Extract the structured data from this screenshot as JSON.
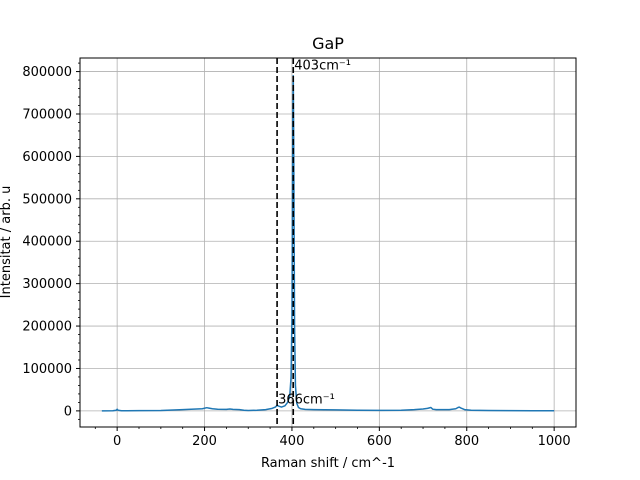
{
  "chart_data": {
    "type": "line",
    "title": "GaP",
    "xlabel": "Raman shift / cm^-1",
    "ylabel": "Intensitat / arb. u",
    "xlim": [
      -85,
      1050
    ],
    "ylim": [
      -38000,
      832000
    ],
    "xticks": [
      0,
      200,
      400,
      600,
      800,
      1000
    ],
    "xtick_labels": [
      "0",
      "200",
      "400",
      "600",
      "800",
      "1000"
    ],
    "yticks": [
      0,
      100000,
      200000,
      300000,
      400000,
      500000,
      600000,
      700000,
      800000
    ],
    "ytick_labels": [
      "0",
      "100000",
      "200000",
      "300000",
      "400000",
      "500000",
      "600000",
      "700000",
      "800000"
    ],
    "grid": true,
    "line_color": "#1f77b4",
    "series": [
      {
        "x": [
          -35,
          -10,
          -2,
          0,
          2,
          10,
          50,
          100,
          150,
          195,
          205,
          210,
          218,
          230,
          250,
          258,
          265,
          280,
          290,
          300,
          320,
          340,
          355,
          362,
          366,
          370,
          376,
          384,
          390,
          395,
          398,
          400,
          401,
          402,
          403,
          404,
          405,
          406,
          408,
          411,
          415,
          420,
          430,
          450,
          500,
          550,
          600,
          650,
          680,
          700,
          710,
          718,
          722,
          730,
          760,
          775,
          780,
          783,
          786,
          795,
          810,
          850,
          900,
          950,
          1000
        ],
        "y": [
          0,
          300,
          1500,
          4000,
          1500,
          300,
          500,
          1000,
          3000,
          5000,
          7500,
          6500,
          5000,
          4000,
          3500,
          4500,
          3500,
          3000,
          1500,
          1000,
          1500,
          3000,
          6000,
          9000,
          13000,
          11000,
          9000,
          12000,
          20000,
          35000,
          80000,
          220000,
          450000,
          700000,
          790000,
          640000,
          420000,
          200000,
          60000,
          18000,
          8000,
          5000,
          3500,
          3000,
          2500,
          1500,
          1200,
          1500,
          3000,
          4500,
          6000,
          8000,
          4000,
          3000,
          3000,
          5000,
          8000,
          9000,
          7000,
          3000,
          1500,
          800,
          500,
          300,
          200
        ]
      }
    ],
    "vlines": [
      {
        "x": 366,
        "style": "dashed",
        "color": "#000000"
      },
      {
        "x": 403,
        "style": "dashed",
        "color": "#000000"
      }
    ],
    "annotations": [
      {
        "text": "403cm⁻¹",
        "x": 403,
        "y": 800000
      },
      {
        "text": "366cm⁻¹",
        "x": 366,
        "y": 13000
      }
    ]
  }
}
